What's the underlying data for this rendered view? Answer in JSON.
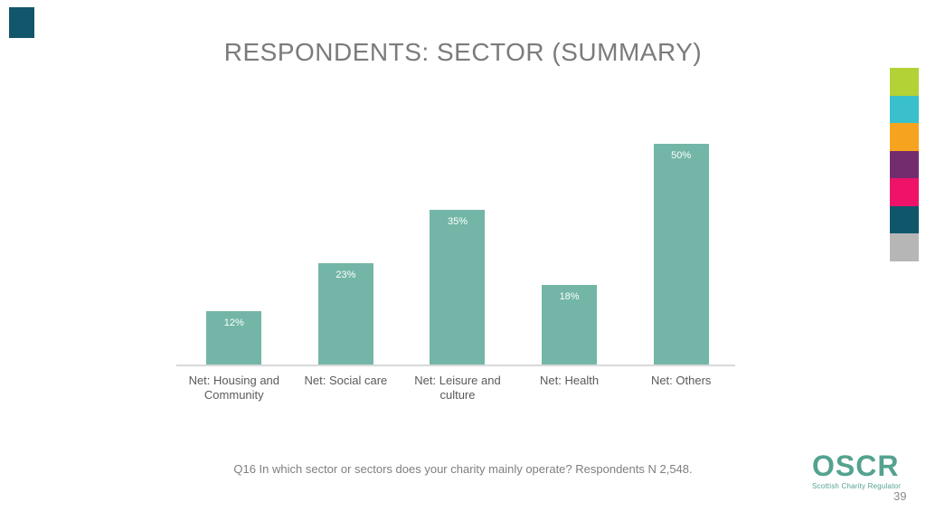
{
  "slide": {
    "title": "RESPONDENTS: SECTOR (SUMMARY)",
    "footnote": "Q16 In which sector or sectors does your charity mainly operate? Respondents N 2,548.",
    "page_number": "39",
    "corner_marker_color": "#12566b",
    "accent_strip_colors": [
      "#b2d235",
      "#3ac0cc",
      "#f6a41f",
      "#732d6f",
      "#ee1368",
      "#10566b",
      "#b6b6b6"
    ]
  },
  "logo": {
    "name": "OSCR",
    "tagline": "Scottish Charity Regulator",
    "color": "#54a28f"
  },
  "chart_data": {
    "type": "bar",
    "title": "RESPONDENTS: SECTOR (SUMMARY)",
    "categories": [
      "Net: Housing and Community",
      "Net: Social care",
      "Net: Leisure and culture",
      "Net: Health",
      "Net: Others"
    ],
    "values": [
      12,
      23,
      35,
      18,
      50
    ],
    "data_labels": [
      "12%",
      "23%",
      "35%",
      "18%",
      "50%"
    ],
    "bar_color": "#73b6a7",
    "data_label_color": "#ffffff",
    "axis_line_color": "#d9d9d9",
    "xlabel": "",
    "ylabel": "",
    "ylim": [
      0,
      55
    ],
    "grid": false,
    "legend": false
  }
}
